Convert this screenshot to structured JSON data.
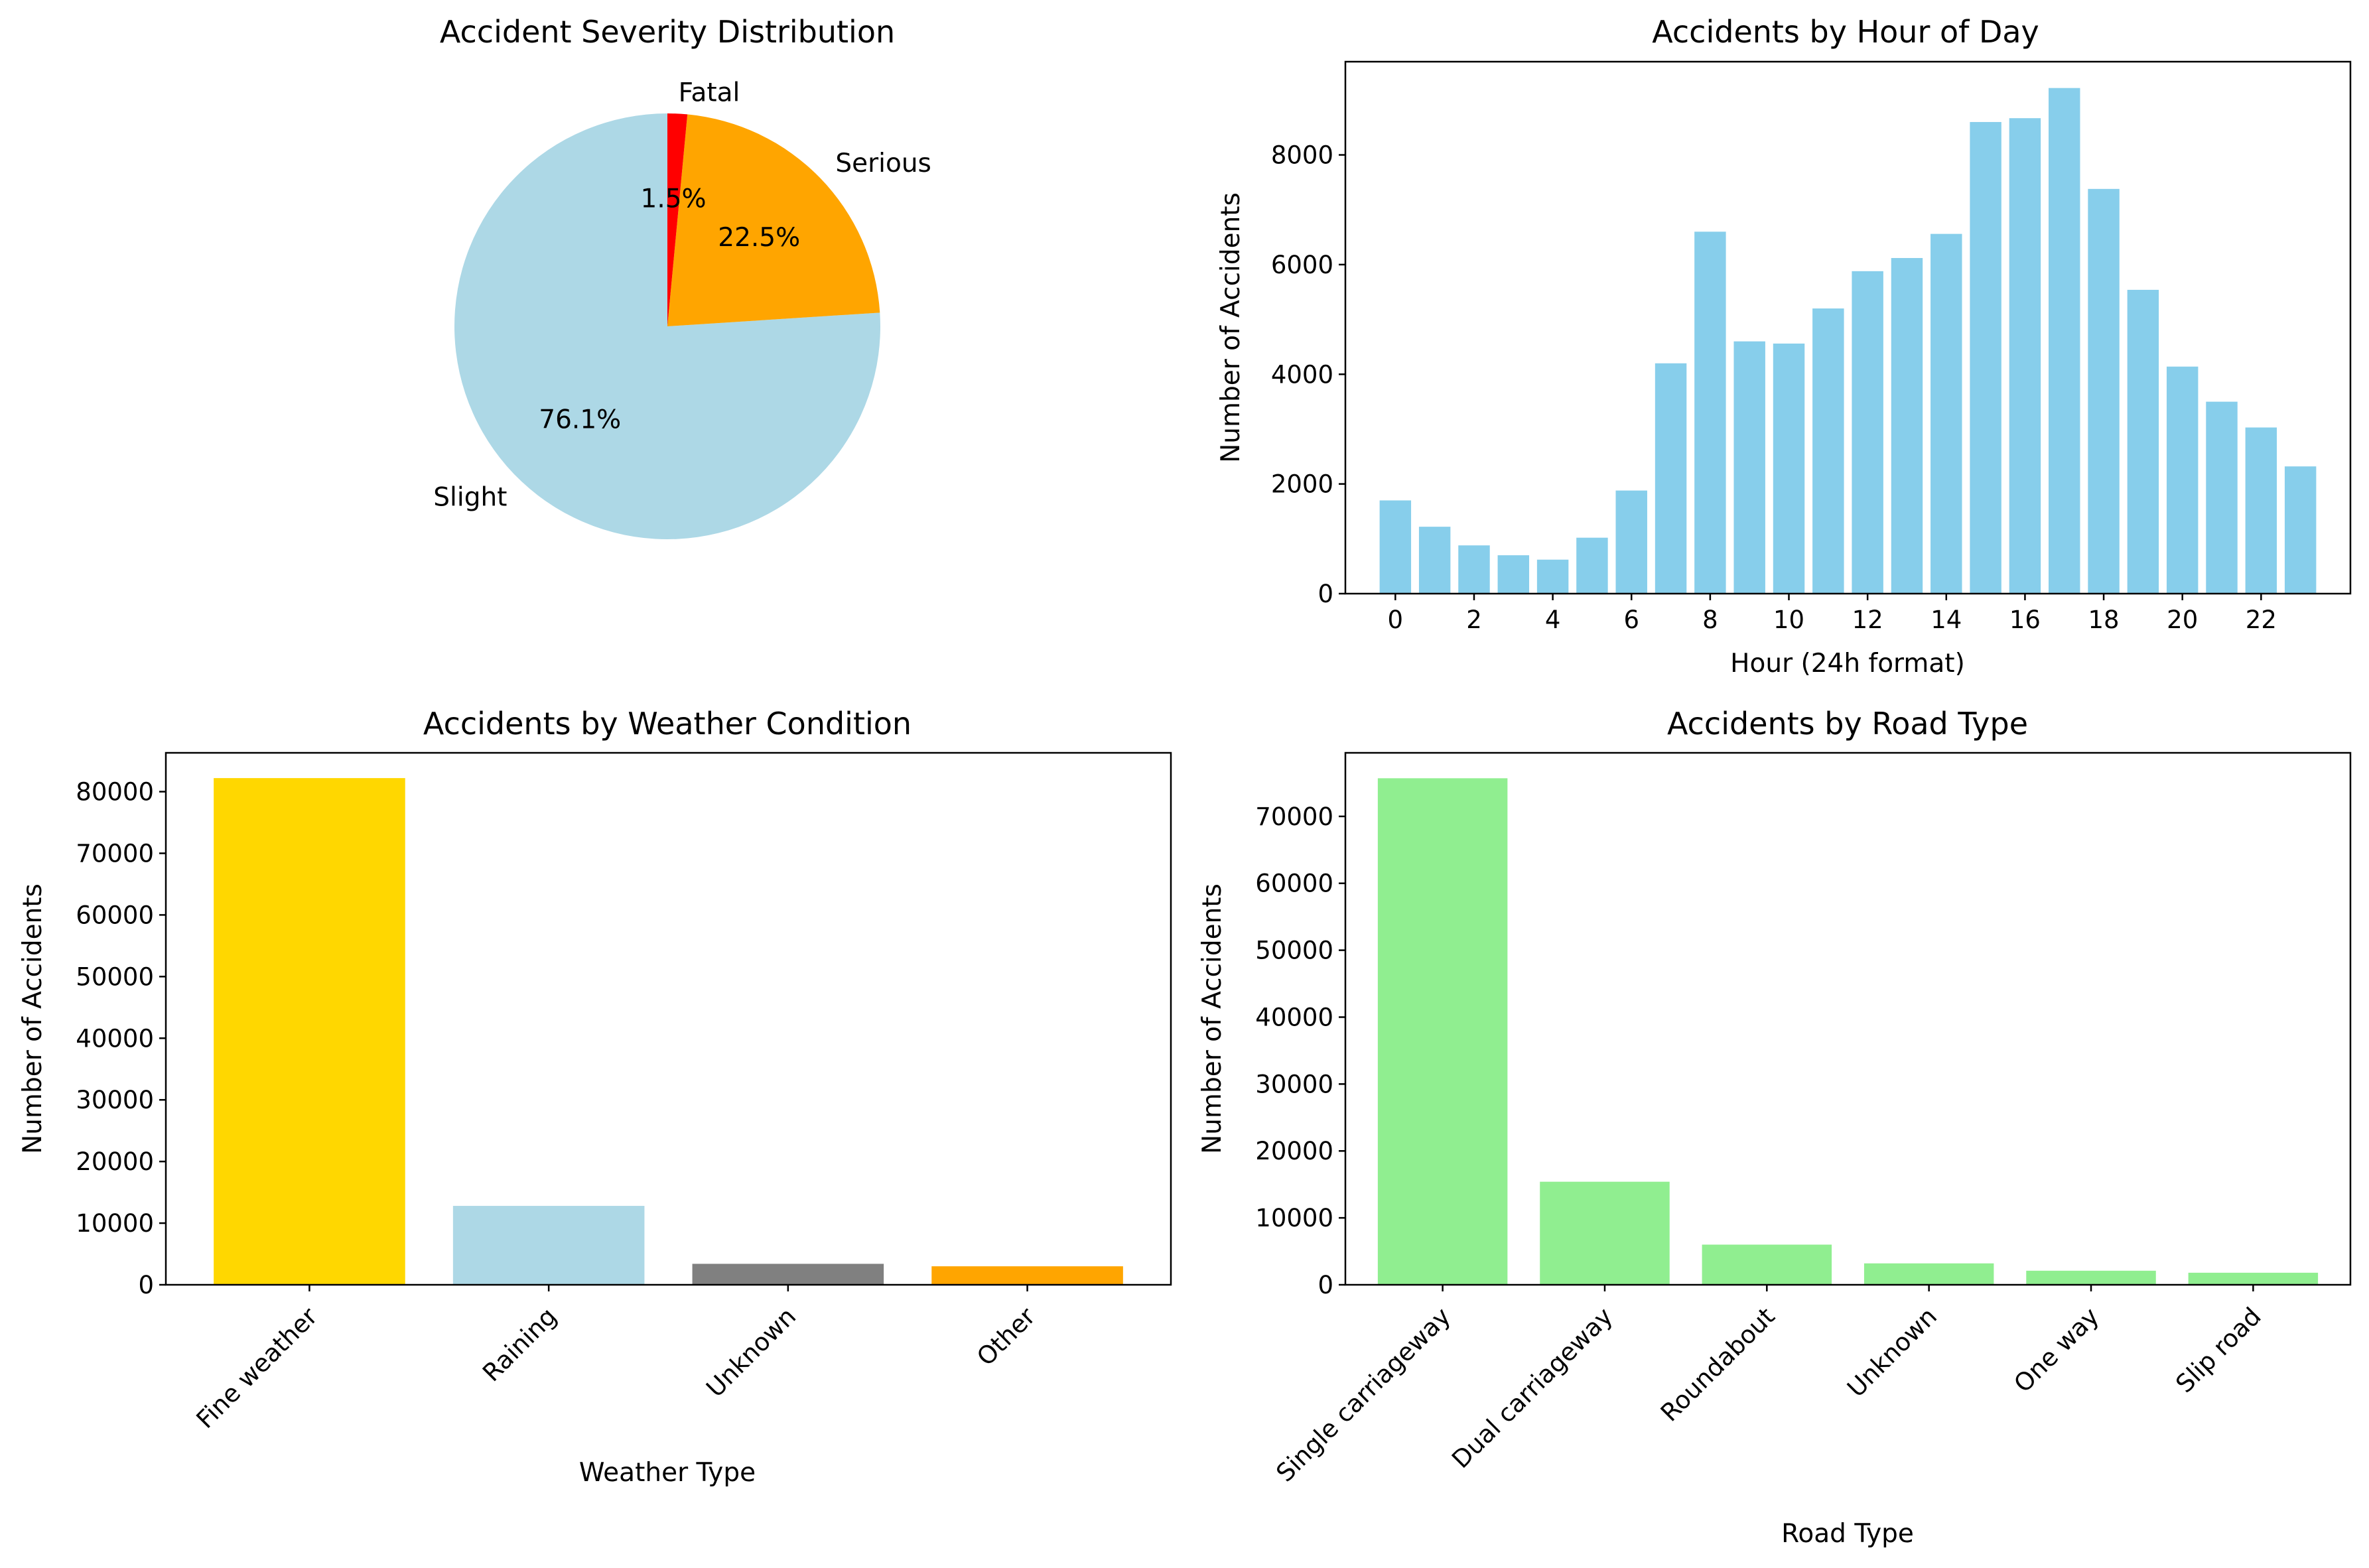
{
  "chart_data": [
    {
      "type": "pie",
      "title": "Accident Severity Distribution",
      "labels": [
        "Slight",
        "Serious",
        "Fatal"
      ],
      "values": [
        76.1,
        22.5,
        1.5
      ],
      "value_labels": [
        "76.1%",
        "22.5%",
        "1.5%"
      ],
      "colors": [
        "#add8e6",
        "#ffa500",
        "#ff0000"
      ]
    },
    {
      "type": "bar",
      "title": "Accidents by Hour of Day",
      "xlabel": "Hour (24h format)",
      "ylabel": "Number of Accidents",
      "x": [
        0,
        1,
        2,
        3,
        4,
        5,
        6,
        7,
        8,
        9,
        10,
        11,
        12,
        13,
        14,
        15,
        16,
        17,
        18,
        19,
        20,
        21,
        22,
        23
      ],
      "values": [
        1700,
        1220,
        880,
        700,
        620,
        1020,
        1880,
        4200,
        6600,
        4600,
        4560,
        5200,
        5880,
        6120,
        6560,
        8600,
        8670,
        9220,
        7380,
        5540,
        4140,
        3500,
        3030,
        2320
      ],
      "xticks": [
        "0",
        "2",
        "4",
        "6",
        "8",
        "10",
        "12",
        "14",
        "16",
        "18",
        "20",
        "22"
      ],
      "yticks": [
        "0",
        "2000",
        "4000",
        "6000",
        "8000"
      ],
      "ylim": [
        0,
        9700
      ],
      "color": "#87ceeb"
    },
    {
      "type": "bar",
      "title": "Accidents by Weather Condition",
      "xlabel": "Weather Type",
      "ylabel": "Number of Accidents",
      "categories": [
        "Fine weather",
        "Raining",
        "Unknown",
        "Other"
      ],
      "values": [
        82200,
        12800,
        3400,
        3000
      ],
      "yticks": [
        "0",
        "10000",
        "20000",
        "30000",
        "40000",
        "50000",
        "60000",
        "70000",
        "80000"
      ],
      "ylim": [
        0,
        86300
      ],
      "colors": [
        "#ffd700",
        "#add8e6",
        "#808080",
        "#ffa500"
      ]
    },
    {
      "type": "bar",
      "title": "Accidents by Road Type",
      "xlabel": "Road Type",
      "ylabel": "Number of Accidents",
      "categories": [
        "Single carriageway",
        "Dual carriageway",
        "Roundabout",
        "Unknown",
        "One way",
        "Slip road"
      ],
      "values": [
        75700,
        15400,
        6000,
        3200,
        2100,
        1800
      ],
      "yticks": [
        "0",
        "10000",
        "20000",
        "30000",
        "40000",
        "50000",
        "60000",
        "70000"
      ],
      "ylim": [
        0,
        79500
      ],
      "color": "#90ee90"
    }
  ]
}
